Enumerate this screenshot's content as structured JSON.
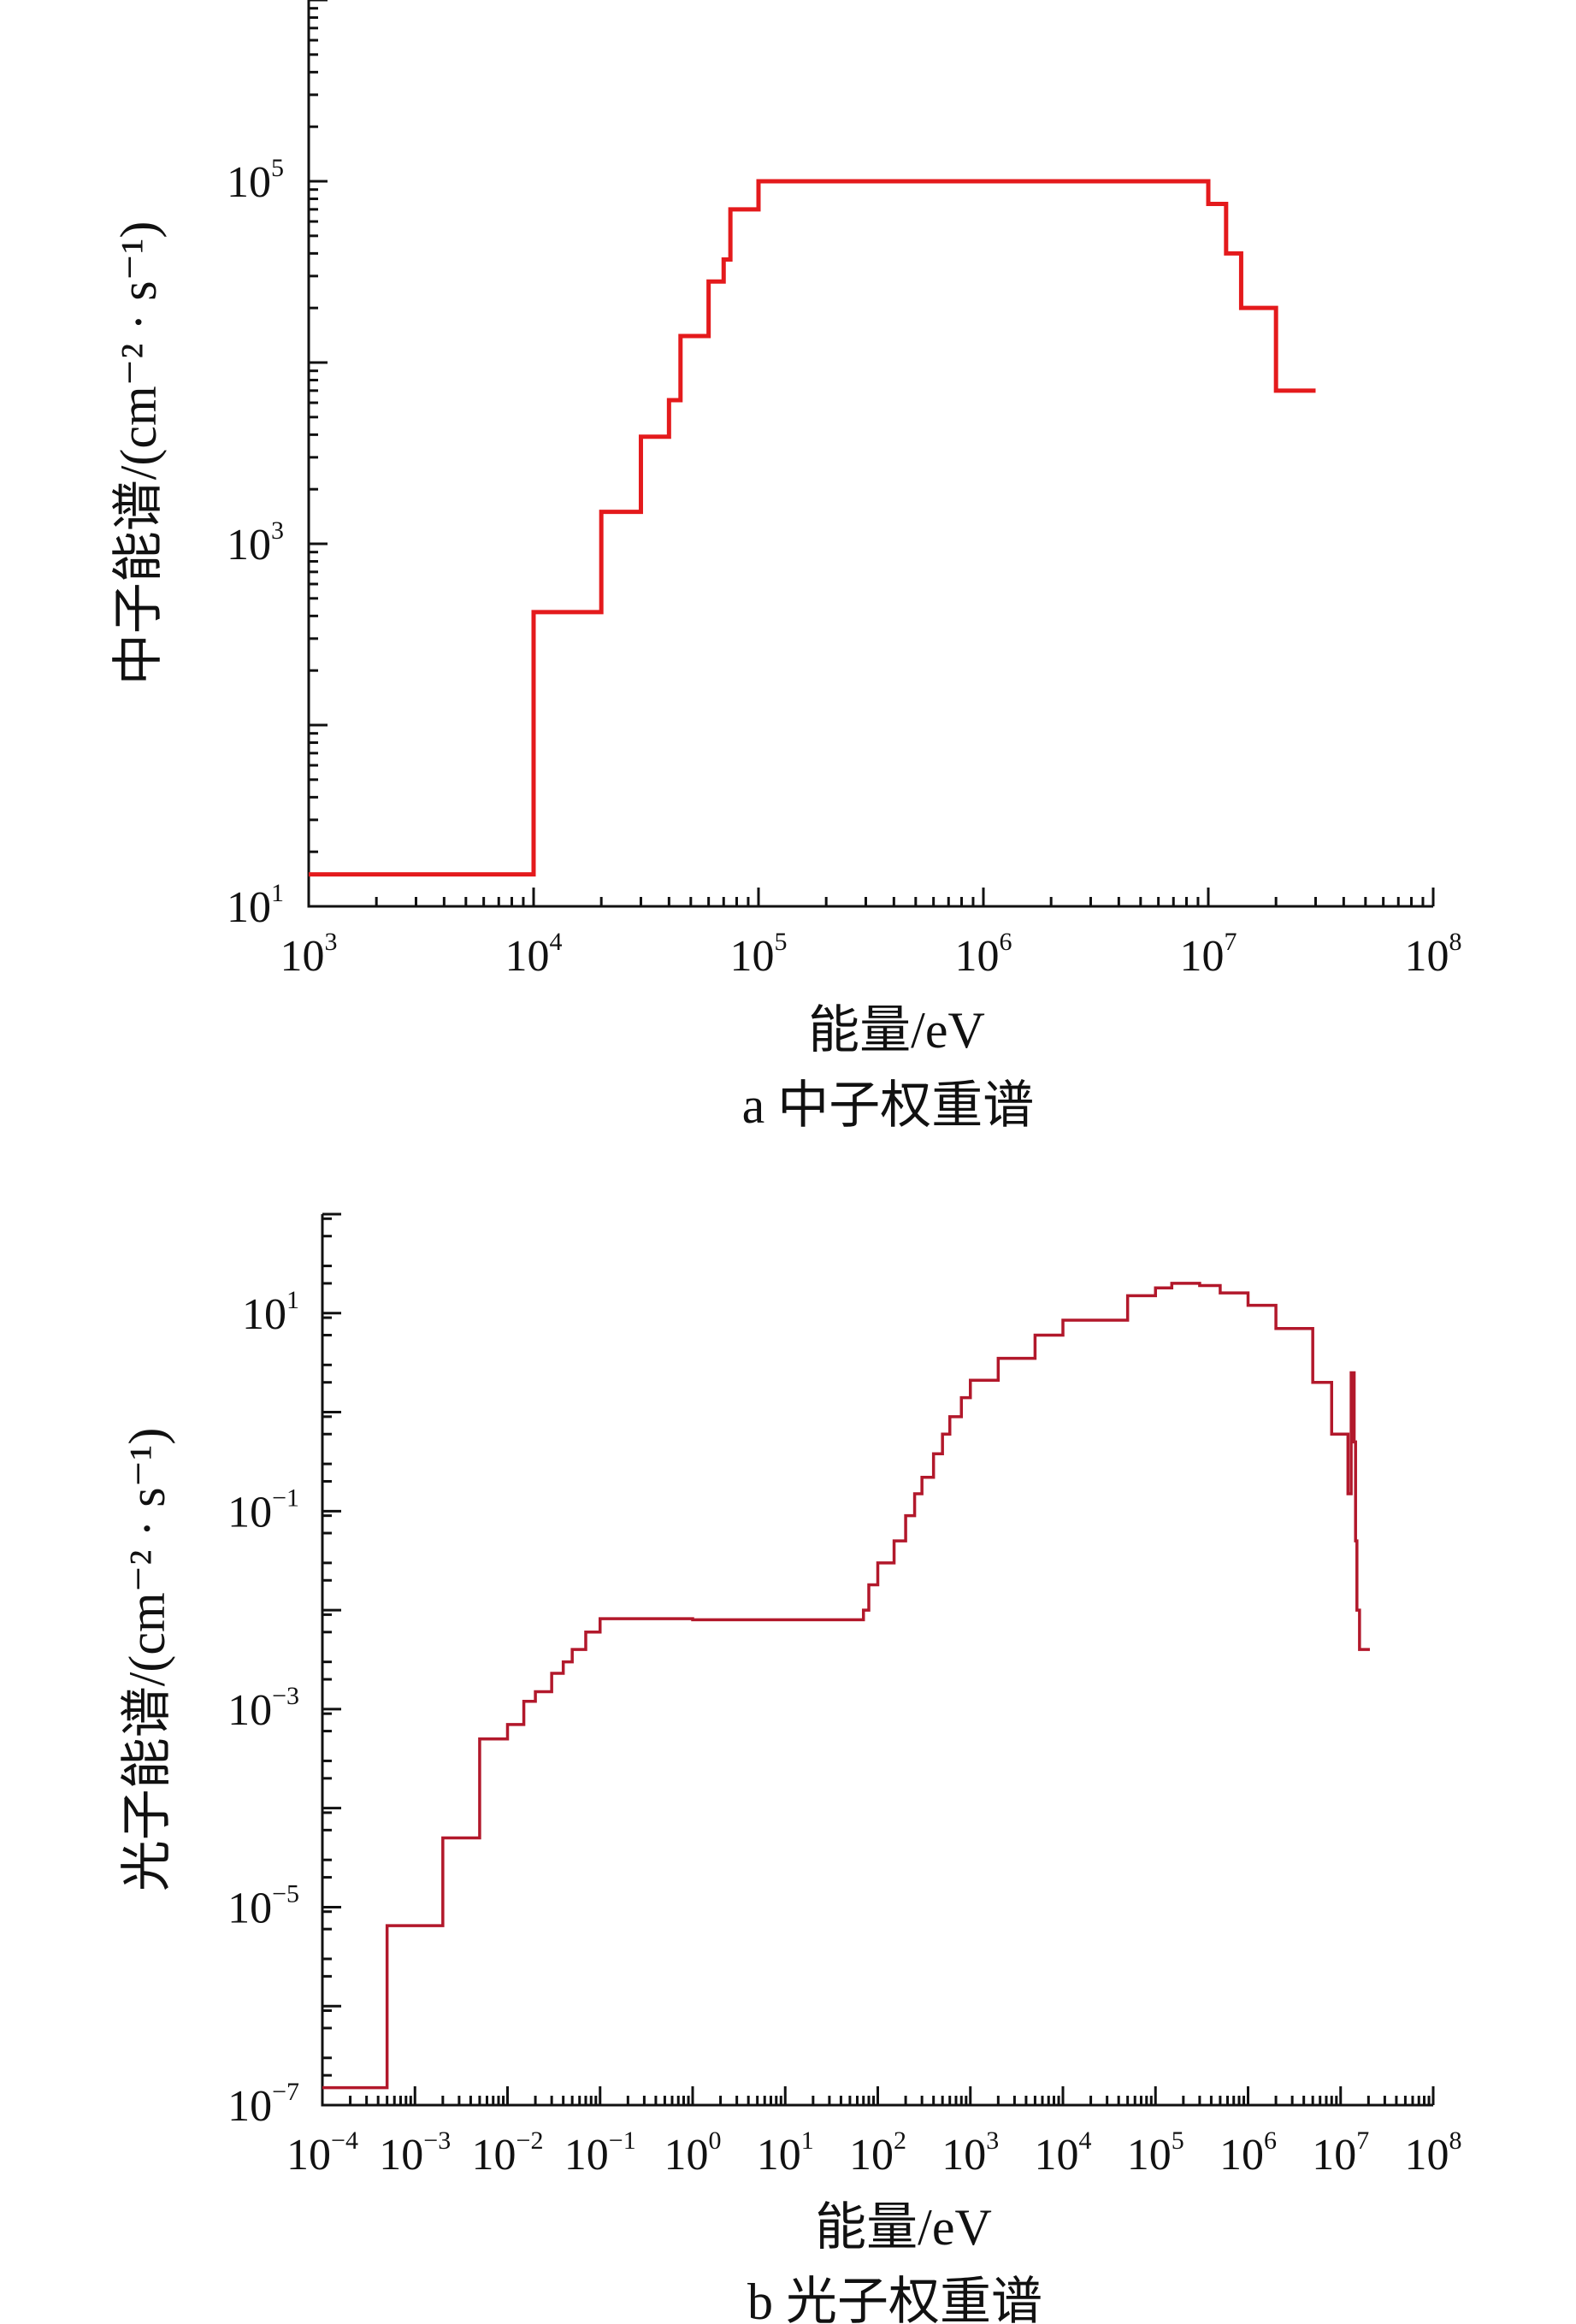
{
  "chart_data": [
    {
      "type": "line",
      "step": true,
      "caption": "a 中子权重谱",
      "xlabel": "能量/eV",
      "ylabel": "中子能谱/(cm⁻² · s⁻¹)",
      "xscale": "log",
      "yscale": "log",
      "xlim": [
        1000,
        100000000
      ],
      "ylim": [
        10,
        1000000
      ],
      "grid": false,
      "color": "#e41a1c",
      "x_ticks": [
        {
          "base": "10",
          "exp": "3"
        },
        {
          "base": "10",
          "exp": "4"
        },
        {
          "base": "10",
          "exp": "5"
        },
        {
          "base": "10",
          "exp": "6"
        },
        {
          "base": "10",
          "exp": "7"
        },
        {
          "base": "10",
          "exp": "8"
        }
      ],
      "y_ticks": [
        {
          "base": "10",
          "exp": "1"
        },
        {
          "base": "10",
          "exp": "3"
        },
        {
          "base": "10",
          "exp": "5"
        }
      ],
      "series": [
        {
          "x": [
            1000,
            10000,
            20000,
            30000,
            40000,
            45000,
            60000,
            70000,
            75000,
            100000,
            10000000,
            12000000,
            14000000,
            20000000,
            30000000
          ],
          "y": [
            15,
            420,
            1500,
            3900,
            6200,
            14000,
            28000,
            37000,
            70000,
            100000,
            75000,
            40000,
            20000,
            7000,
            7000
          ]
        }
      ]
    },
    {
      "type": "line",
      "step": true,
      "caption": "b 光子权重谱",
      "xlabel": "能量/eV",
      "ylabel": "光子能谱/(cm⁻² · s⁻¹)",
      "xscale": "log",
      "yscale": "log",
      "xlim": [
        0.0001,
        100000000
      ],
      "ylim": [
        1e-07,
        100
      ],
      "grid": false,
      "color": "#b2182b",
      "x_ticks": [
        {
          "base": "10",
          "exp": "−4"
        },
        {
          "base": "10",
          "exp": "−3"
        },
        {
          "base": "10",
          "exp": "−2"
        },
        {
          "base": "10",
          "exp": "−1"
        },
        {
          "base": "10",
          "exp": "0"
        },
        {
          "base": "10",
          "exp": "1"
        },
        {
          "base": "10",
          "exp": "2"
        },
        {
          "base": "10",
          "exp": "3"
        },
        {
          "base": "10",
          "exp": "4"
        },
        {
          "base": "10",
          "exp": "5"
        },
        {
          "base": "10",
          "exp": "6"
        },
        {
          "base": "10",
          "exp": "7"
        },
        {
          "base": "10",
          "exp": "8"
        }
      ],
      "y_ticks": [
        {
          "base": "10",
          "exp": "−7"
        },
        {
          "base": "10",
          "exp": "−5"
        },
        {
          "base": "10",
          "exp": "−3"
        },
        {
          "base": "10",
          "exp": "−1"
        },
        {
          "base": "10",
          "exp": "1"
        }
      ],
      "series": [
        {
          "x": [
            0.0001,
            0.0005,
            0.002,
            0.005,
            0.01,
            0.015,
            0.02,
            0.03,
            0.04,
            0.05,
            0.07,
            0.1,
            1,
            10,
            70,
            80,
            100,
            150,
            200,
            250,
            300,
            400,
            500,
            600,
            800,
            1000,
            2000,
            5000,
            10000,
            50000,
            100000,
            150000,
            200000,
            300000,
            500000,
            1000000,
            2000000,
            5000000,
            8000000,
            12000000,
            13000000,
            14000000,
            14500000,
            15000000,
            16000000,
            18000000
          ],
          "y": [
            1.5e-07,
            6.5e-06,
            5e-05,
            0.0005,
            0.0007,
            0.0012,
            0.0015,
            0.0023,
            0.003,
            0.004,
            0.006,
            0.0082,
            0.008,
            0.008,
            0.01,
            0.018,
            0.03,
            0.05,
            0.09,
            0.15,
            0.22,
            0.38,
            0.6,
            0.9,
            1.4,
            2.1,
            3.5,
            6,
            8.5,
            15,
            18,
            20,
            20,
            19,
            16,
            12,
            7,
            2,
            0.6,
            0.15,
            2.5,
            0.5,
            0.05,
            0.01,
            0.004,
            0.004
          ]
        }
      ]
    }
  ]
}
